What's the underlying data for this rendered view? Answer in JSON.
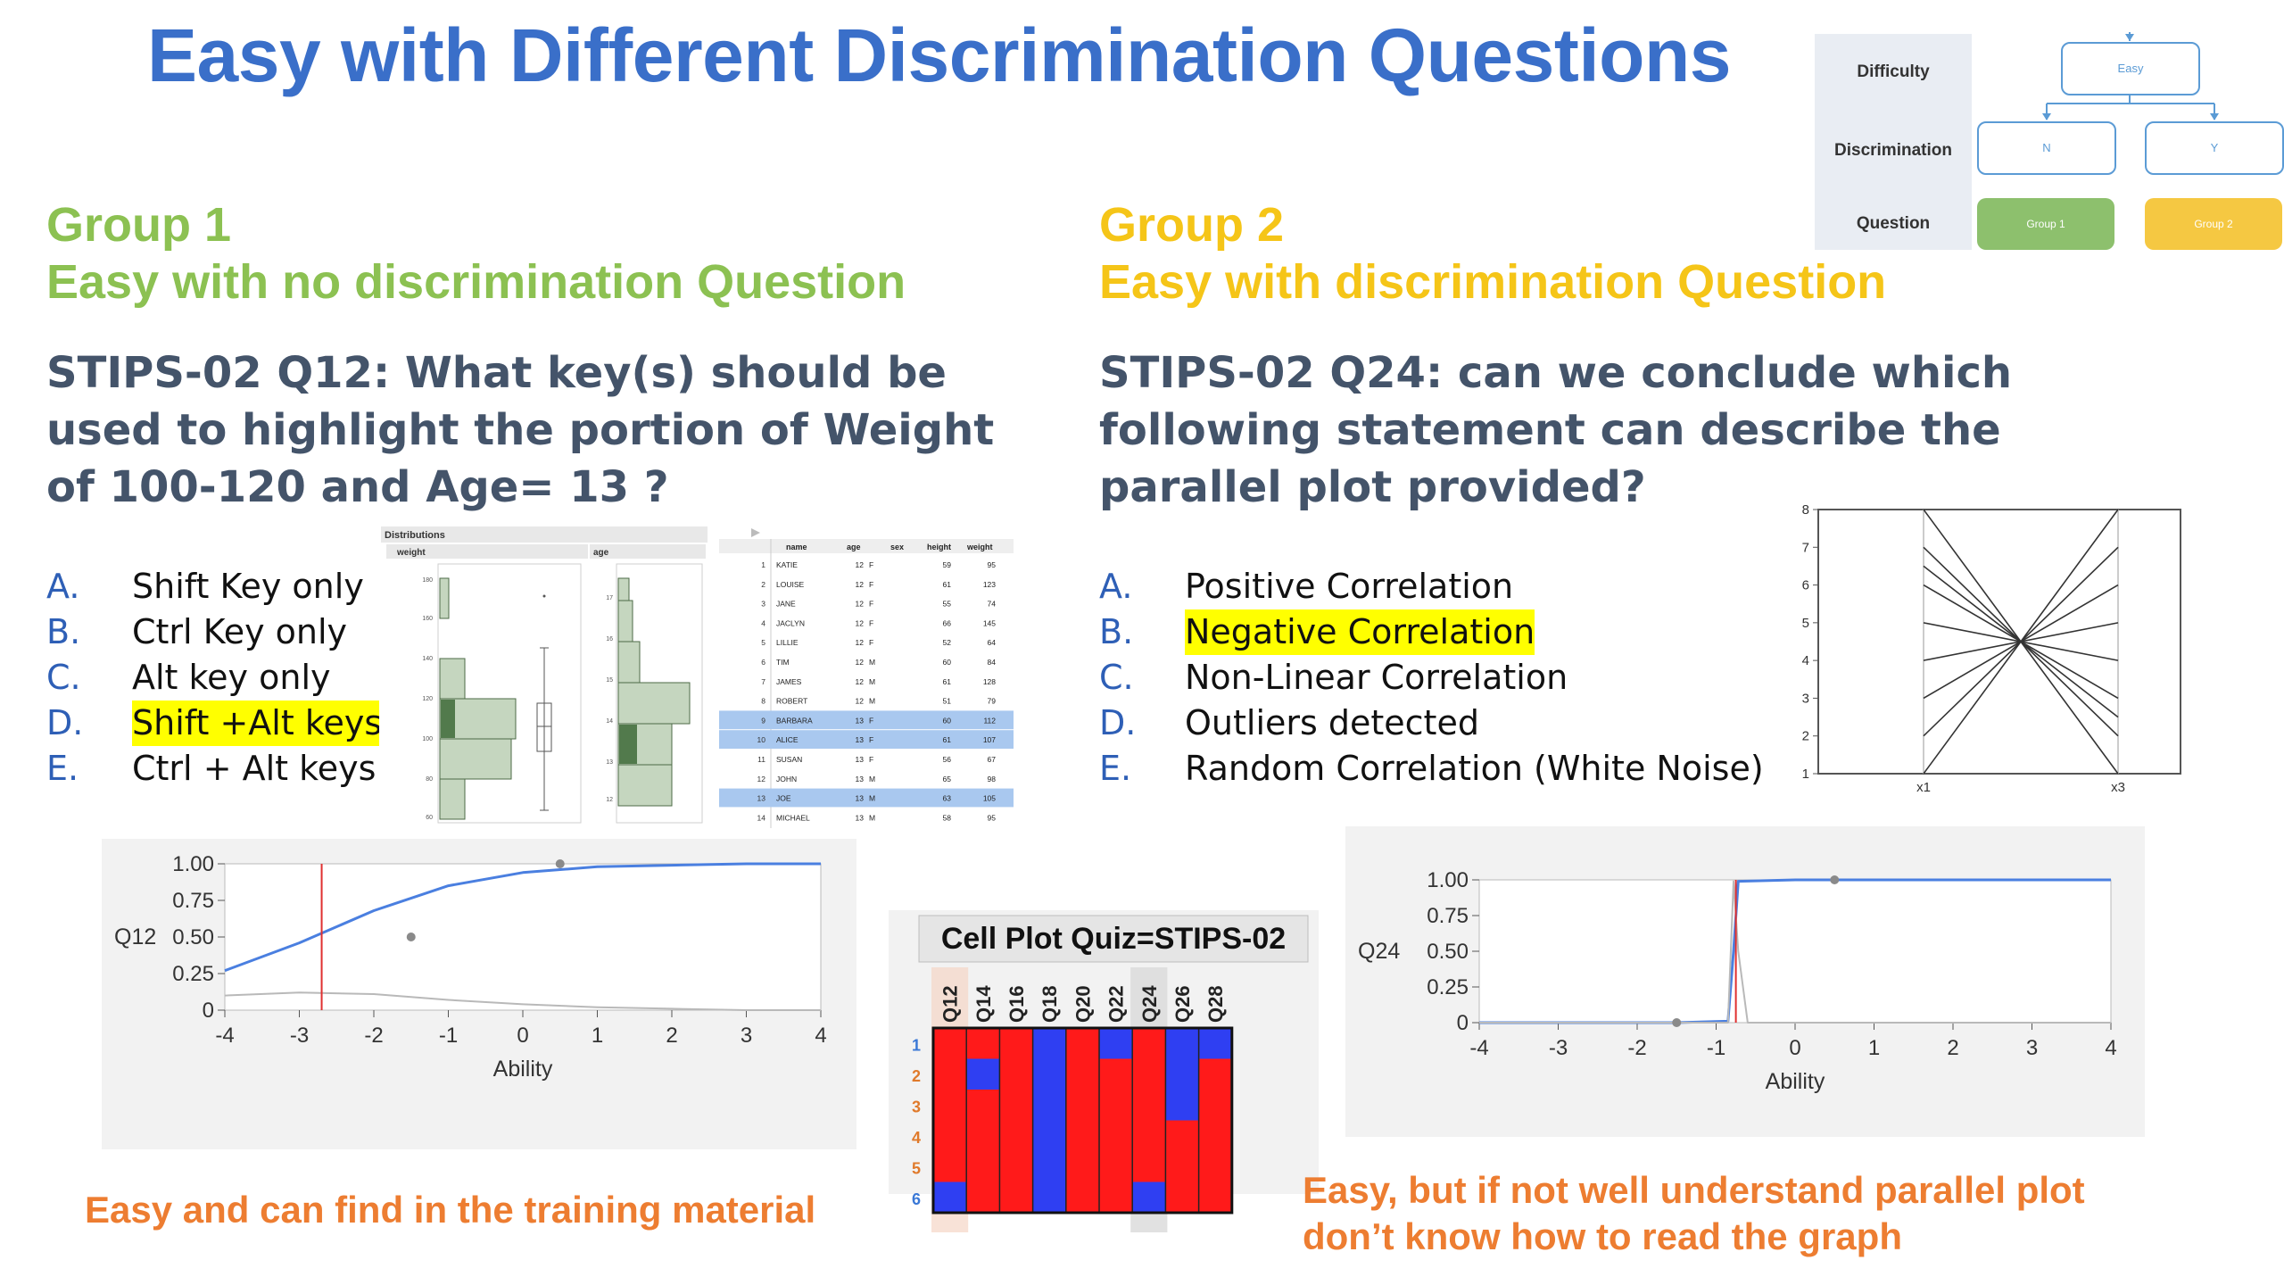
{
  "title": "Easy with Different Discrimination Questions",
  "decision_tree": {
    "row_labels": [
      "Difficulty",
      "Discrimination",
      "Question"
    ],
    "root": "Easy",
    "branches": [
      "N",
      "Y"
    ],
    "leaves": [
      "Group 1",
      "Group 2"
    ],
    "colors": {
      "group1": "#8dc06d",
      "group2": "#f5c842",
      "header": "#e9edf3",
      "node_border": "#5b9bd5"
    }
  },
  "group1": {
    "heading": "Group 1",
    "subheading": "Easy with no discrimination Question",
    "question": "STIPS-02 Q12: What key(s) should be used to highlight the portion of Weight of 100-120 and Age= 13 ?",
    "options": [
      {
        "letter": "A.",
        "text": "Shift Key only"
      },
      {
        "letter": "B.",
        "text": "Ctrl Key only"
      },
      {
        "letter": "C.",
        "text": "Alt key only"
      },
      {
        "letter": "D.",
        "text": "Shift +Alt keys",
        "highlighted": true
      },
      {
        "letter": "E.",
        "text": "Ctrl + Alt keys"
      }
    ],
    "note": "Easy and can find in the training material"
  },
  "group2": {
    "heading": "Group 2",
    "subheading": "Easy with discrimination Question",
    "question": "STIPS-02 Q24: can we conclude which following statement can describe the parallel plot provided?",
    "options": [
      {
        "letter": "A.",
        "text": "Positive Correlation"
      },
      {
        "letter": "B.",
        "text": "Negative Correlation",
        "highlighted": true
      },
      {
        "letter": "C.",
        "text": "Non-Linear Correlation"
      },
      {
        "letter": "D.",
        "text": "Outliers detected"
      },
      {
        "letter": "E.",
        "text": "Random Correlation (White Noise)"
      }
    ],
    "note": "Easy, but if not well understand parallel plot don’t know how to read the graph"
  },
  "jmp": {
    "distributions_title": "Distributions",
    "var1": "weight",
    "var2": "age",
    "weight_ticks": [
      "180",
      "160",
      "140",
      "120",
      "100",
      "80",
      "60"
    ],
    "age_ticks": [
      "17",
      "16",
      "15",
      "14",
      "13",
      "12"
    ],
    "table_headers": [
      "name",
      "age",
      "sex",
      "height",
      "weight"
    ],
    "rows": [
      {
        "n": "1",
        "name": "KATIE",
        "age": "12",
        "sex": "F",
        "height": "59",
        "weight": "95",
        "sel": false
      },
      {
        "n": "2",
        "name": "LOUISE",
        "age": "12",
        "sex": "F",
        "height": "61",
        "weight": "123",
        "sel": false
      },
      {
        "n": "3",
        "name": "JANE",
        "age": "12",
        "sex": "F",
        "height": "55",
        "weight": "74",
        "sel": false
      },
      {
        "n": "4",
        "name": "JACLYN",
        "age": "12",
        "sex": "F",
        "height": "66",
        "weight": "145",
        "sel": false
      },
      {
        "n": "5",
        "name": "LILLIE",
        "age": "12",
        "sex": "F",
        "height": "52",
        "weight": "64",
        "sel": false
      },
      {
        "n": "6",
        "name": "TIM",
        "age": "12",
        "sex": "M",
        "height": "60",
        "weight": "84",
        "sel": false
      },
      {
        "n": "7",
        "name": "JAMES",
        "age": "12",
        "sex": "M",
        "height": "61",
        "weight": "128",
        "sel": false
      },
      {
        "n": "8",
        "name": "ROBERT",
        "age": "12",
        "sex": "M",
        "height": "51",
        "weight": "79",
        "sel": false
      },
      {
        "n": "9",
        "name": "BARBARA",
        "age": "13",
        "sex": "F",
        "height": "60",
        "weight": "112",
        "sel": true
      },
      {
        "n": "10",
        "name": "ALICE",
        "age": "13",
        "sex": "F",
        "height": "61",
        "weight": "107",
        "sel": true
      },
      {
        "n": "11",
        "name": "SUSAN",
        "age": "13",
        "sex": "F",
        "height": "56",
        "weight": "67",
        "sel": false
      },
      {
        "n": "12",
        "name": "JOHN",
        "age": "13",
        "sex": "M",
        "height": "65",
        "weight": "98",
        "sel": false
      },
      {
        "n": "13",
        "name": "JOE",
        "age": "13",
        "sex": "M",
        "height": "63",
        "weight": "105",
        "sel": true
      },
      {
        "n": "14",
        "name": "MICHAEL",
        "age": "13",
        "sex": "M",
        "height": "58",
        "weight": "95",
        "sel": false
      }
    ]
  },
  "chart_data": [
    {
      "type": "line",
      "id": "icc-q12",
      "ylabel": "Q12",
      "xlabel": "Ability",
      "xlim": [
        -4,
        4
      ],
      "ylim": [
        0,
        1
      ],
      "xticks": [
        "-4",
        "-3",
        "-2",
        "-1",
        "0",
        "1",
        "2",
        "3",
        "4"
      ],
      "yticks": [
        "1.00",
        "0.75",
        "0.50",
        "0.25",
        "0"
      ],
      "vline_x": -2.7,
      "series": [
        {
          "color": "#4a7fe0",
          "x": [
            -4,
            -3,
            -2,
            -1,
            0,
            1,
            2,
            3,
            4
          ],
          "values": [
            0.27,
            0.46,
            0.68,
            0.85,
            0.94,
            0.98,
            0.99,
            1.0,
            1.0
          ]
        },
        {
          "color": "#b9b9b9",
          "x": [
            -4,
            -3,
            -2,
            -1,
            0,
            1,
            2,
            3,
            4
          ],
          "values": [
            0.1,
            0.12,
            0.11,
            0.07,
            0.04,
            0.02,
            0.01,
            0.0,
            0.0
          ]
        }
      ],
      "points": [
        {
          "x": 0.5,
          "y": 1.0
        },
        {
          "x": -1.5,
          "y": 0.5
        }
      ]
    },
    {
      "type": "line",
      "id": "parallel-plot",
      "xlabel": "",
      "categories": [
        "x1",
        "x3"
      ],
      "ylim": [
        1,
        8
      ],
      "yticks": [
        "8",
        "7",
        "6",
        "5",
        "4",
        "3",
        "2",
        "1"
      ],
      "series": [
        {
          "x1": 8,
          "x3": 1
        },
        {
          "x1": 7,
          "x3": 2
        },
        {
          "x1": 6.5,
          "x3": 2.5
        },
        {
          "x1": 6,
          "x3": 3
        },
        {
          "x1": 5,
          "x3": 4
        },
        {
          "x1": 4,
          "x3": 5
        },
        {
          "x1": 3,
          "x3": 6
        },
        {
          "x1": 2,
          "x3": 7
        },
        {
          "x1": 1,
          "x3": 8
        }
      ]
    },
    {
      "type": "line",
      "id": "icc-q24",
      "ylabel": "Q24",
      "xlabel": "Ability",
      "xlim": [
        -4,
        4
      ],
      "ylim": [
        0,
        1
      ],
      "xticks": [
        "-4",
        "-3",
        "-2",
        "-1",
        "0",
        "1",
        "2",
        "3",
        "4"
      ],
      "yticks": [
        "1.00",
        "0.75",
        "0.50",
        "0.25",
        "0"
      ],
      "vline_x": -0.75,
      "series": [
        {
          "color": "#4a7fe0",
          "x": [
            -4,
            -1.5,
            -0.85,
            -0.78,
            -0.72,
            0,
            4
          ],
          "values": [
            0.0,
            0.0,
            0.01,
            0.5,
            0.99,
            1.0,
            1.0
          ]
        },
        {
          "color": "#b9b9b9",
          "x": [
            -4,
            -0.85,
            -0.78,
            -0.72,
            -0.6,
            4
          ],
          "values": [
            0.0,
            0.0,
            0.99,
            0.5,
            0.0,
            0.0
          ]
        }
      ],
      "points": [
        {
          "x": 0.5,
          "y": 1.0
        },
        {
          "x": -1.5,
          "y": 0.0
        }
      ]
    },
    {
      "type": "heatmap",
      "id": "cell-plot",
      "title": "Cell Plot Quiz=STIPS-02",
      "categories": [
        "Q12",
        "Q14",
        "Q16",
        "Q18",
        "Q20",
        "Q22",
        "Q24",
        "Q26",
        "Q28"
      ],
      "rows": [
        "1",
        "2",
        "3",
        "4",
        "5",
        "6"
      ],
      "colors": {
        "r": "#ff1a1a",
        "b": "#2f3ff2"
      },
      "cells": [
        [
          "r",
          "r",
          "r",
          "b",
          "r",
          "b",
          "r",
          "b",
          "b"
        ],
        [
          "r",
          "b",
          "r",
          "b",
          "r",
          "r",
          "r",
          "b",
          "r"
        ],
        [
          "r",
          "r",
          "r",
          "b",
          "r",
          "r",
          "r",
          "b",
          "r"
        ],
        [
          "r",
          "r",
          "r",
          "b",
          "r",
          "r",
          "r",
          "r",
          "r"
        ],
        [
          "r",
          "r",
          "r",
          "b",
          "r",
          "r",
          "r",
          "r",
          "r"
        ],
        [
          "b",
          "r",
          "r",
          "b",
          "r",
          "r",
          "b",
          "r",
          "r"
        ]
      ]
    }
  ]
}
